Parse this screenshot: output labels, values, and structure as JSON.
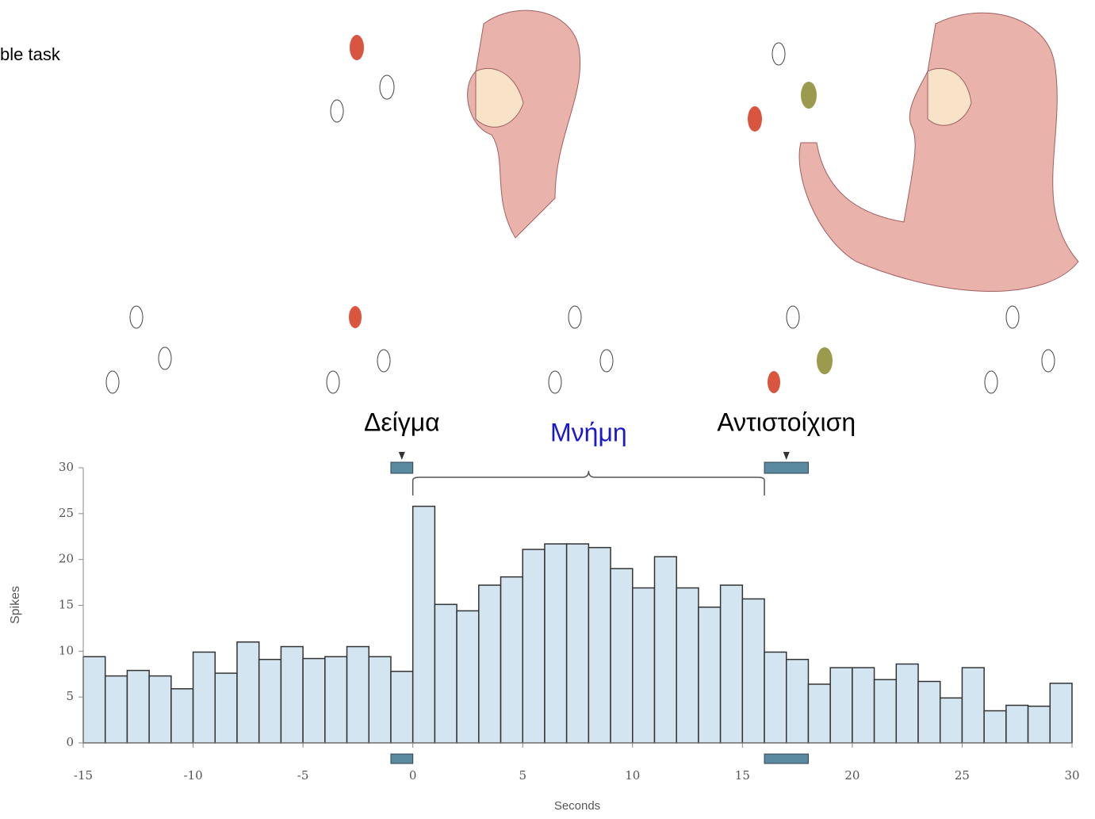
{
  "slide_title": "ble task",
  "chart_data": {
    "type": "histogram",
    "ylabel": "Spikes",
    "xlabel": "Seconds",
    "bins": [
      -15,
      -14,
      -13,
      -12,
      -11,
      -10,
      -9,
      -8,
      -7,
      -6,
      -5,
      -4,
      -3,
      -2,
      -1,
      0,
      1,
      2,
      3,
      4,
      5,
      6,
      7,
      8,
      9,
      10,
      11,
      12,
      13,
      14,
      15,
      16,
      17,
      18,
      19,
      20,
      21,
      22,
      23,
      24,
      25,
      26,
      27,
      28,
      29,
      30
    ],
    "values": [
      9.4,
      7.3,
      7.9,
      7.3,
      5.9,
      9.9,
      7.6,
      11.0,
      9.1,
      10.5,
      9.2,
      9.4,
      10.5,
      9.4,
      7.8,
      25.8,
      15.1,
      14.4,
      17.2,
      18.1,
      21.1,
      21.7,
      21.7,
      21.3,
      19.0,
      16.9,
      20.3,
      16.9,
      14.8,
      17.2,
      15.7,
      9.9,
      9.1,
      6.4,
      8.2,
      8.2,
      6.9,
      8.6,
      6.7,
      4.9,
      8.2,
      3.5,
      4.1,
      4.0,
      6.5
    ],
    "color": "#d3e5f0",
    "xlim": [
      -15,
      30
    ],
    "ylim": [
      0,
      30
    ],
    "xticks": [
      -15,
      -10,
      -5,
      0,
      5,
      10,
      15,
      20,
      25,
      30
    ],
    "yticks": [
      0,
      5,
      10,
      15,
      20,
      25,
      30
    ],
    "grid": false,
    "annotations": [
      {
        "label": "Δείγμα",
        "start": -1,
        "end": 0,
        "style": "bar",
        "color": "#000000"
      },
      {
        "label": "Μνήμη",
        "start": 0,
        "end": 16,
        "style": "brace",
        "color": "#1a1acc"
      },
      {
        "label": "Αντιστοίχιση",
        "start": 16,
        "end": 18,
        "style": "bar",
        "color": "#000000"
      }
    ]
  }
}
